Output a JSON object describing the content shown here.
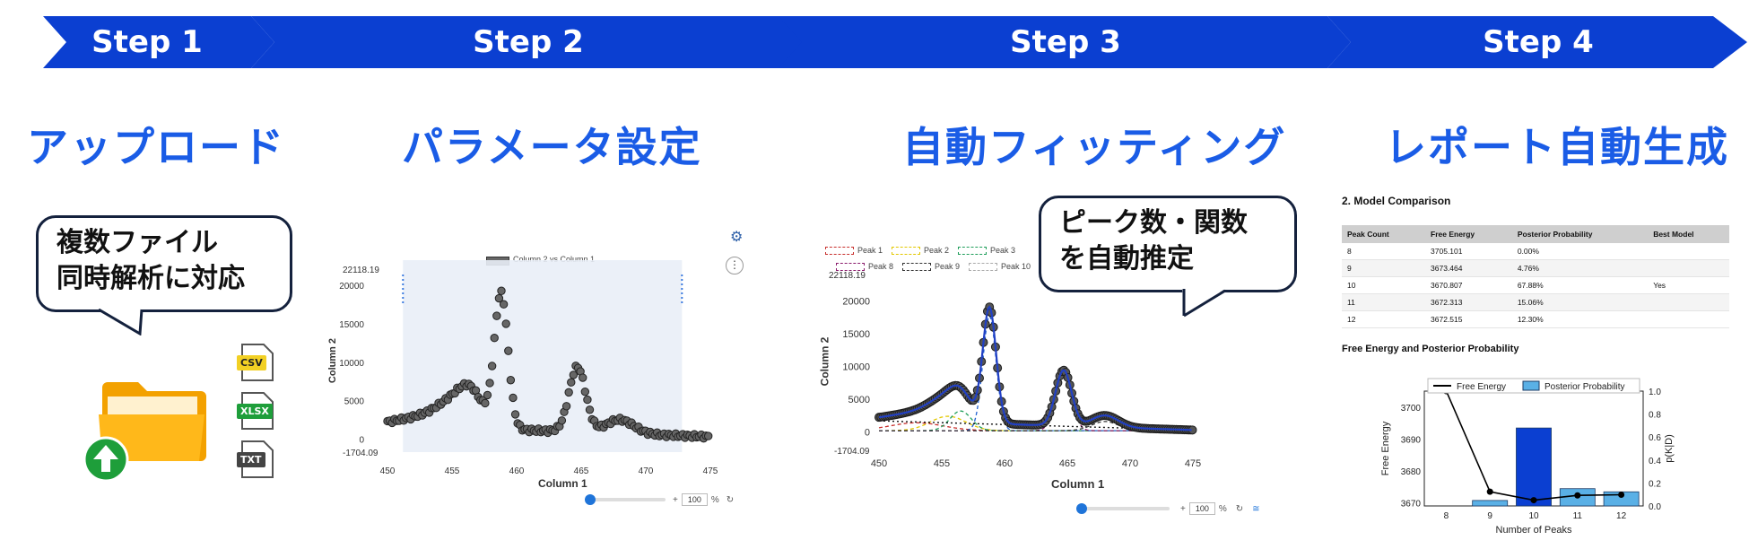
{
  "steps": [
    {
      "label": "Step 1",
      "title": "アップロード"
    },
    {
      "label": "Step 2",
      "title": "パラメータ設定"
    },
    {
      "label": "Step 3",
      "title": "自動フィッティング"
    },
    {
      "label": "Step 4",
      "title": "レポート自動生成"
    }
  ],
  "colors": {
    "banner": "#0b3fd1",
    "title": "#1a5ce6",
    "folder": "#ffb300",
    "upload": "#1e9e3a"
  },
  "upload": {
    "bubble": [
      "複数ファイル",
      "同時解析に対応"
    ],
    "file_types": [
      {
        "label": "CSV",
        "color": "#f2d024",
        "text_color": "#222"
      },
      {
        "label": "XLSX",
        "color": "#1e9e3a",
        "text_color": "#fff"
      },
      {
        "label": "TXT",
        "color": "#444444",
        "text_color": "#fff"
      }
    ]
  },
  "param_chart": {
    "legend": "Column 2 vs Column 1",
    "ytop_label": "22118.19",
    "ybottom_label": "-1704.09",
    "yticks": [
      "20000",
      "15000",
      "10000",
      "5000",
      "0"
    ],
    "xticks": [
      "450",
      "455",
      "460",
      "465",
      "470",
      "475"
    ],
    "xlabel": "Column 1",
    "ylabel": "Column 2",
    "zoom_plus": "+",
    "zoom_value": "100",
    "zoom_unit": "%"
  },
  "fit_chart": {
    "bubble": [
      "ピーク数・関数",
      "を自動推定"
    ],
    "legend_row1": [
      "Peak 1",
      "Peak 2",
      "Peak 3"
    ],
    "legend_row2": [
      "Peak 8",
      "Peak 9",
      "Peak 10"
    ],
    "ytop_label": "22118.19",
    "ybottom_label": "-1704.09",
    "yticks": [
      "20000",
      "15000",
      "10000",
      "5000",
      "0"
    ],
    "xticks": [
      "450",
      "455",
      "460",
      "465",
      "470",
      "475"
    ],
    "xlabel": "Column 1",
    "ylabel": "Column 2",
    "zoom_plus": "+",
    "zoom_value": "100",
    "zoom_unit": "%"
  },
  "report": {
    "comparison_title": "2. Model Comparison",
    "columns": [
      "Peak Count",
      "Free Energy",
      "Posterior Probability",
      "Best Model"
    ],
    "rows": [
      [
        "8",
        "3705.101",
        "0.00%",
        ""
      ],
      [
        "9",
        "3673.464",
        "4.76%",
        ""
      ],
      [
        "10",
        "3670.807",
        "67.88%",
        "Yes"
      ],
      [
        "11",
        "3672.313",
        "15.06%",
        ""
      ],
      [
        "12",
        "3672.515",
        "12.30%",
        ""
      ]
    ],
    "chart_title": "Free Energy and Posterior Probability"
  },
  "chart_data": {
    "type": "bar",
    "categories": [
      "8",
      "9",
      "10",
      "11",
      "12"
    ],
    "series": [
      {
        "name": "Free Energy",
        "type": "line",
        "values": [
          3705.101,
          3673.464,
          3670.807,
          3672.313,
          3672.515
        ]
      },
      {
        "name": "Posterior Probability",
        "type": "bar",
        "values": [
          0.0,
          0.0476,
          0.6788,
          0.1506,
          0.123
        ]
      }
    ],
    "title": "",
    "xlabel": "Number of Peaks",
    "ylabel": "Free Energy",
    "y2label": "p(K|D)",
    "ylim": [
      3669,
      3705
    ],
    "y2lim": [
      0,
      1.0
    ],
    "yticks": [
      "3670",
      "3680",
      "3690",
      "3700"
    ],
    "y2ticks": [
      "0.0",
      "0.2",
      "0.4",
      "0.6",
      "0.8",
      "1.0"
    ],
    "legend": "top"
  }
}
